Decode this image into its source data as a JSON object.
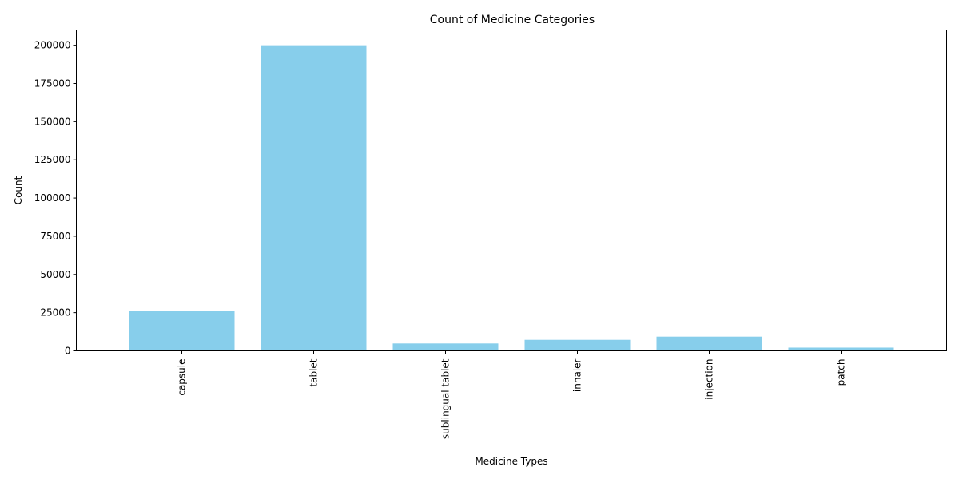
{
  "chart_data": {
    "type": "bar",
    "title": "Count of Medicine Categories",
    "xlabel": "Medicine Types",
    "ylabel": "Count",
    "categories": [
      "capsule",
      "tablet",
      "sublingual tablet",
      "inhaler",
      "injection",
      "patch"
    ],
    "values": [
      26000,
      200000,
      4800,
      7200,
      9300,
      2100
    ],
    "ylim": [
      0,
      210000
    ],
    "yticks": [
      0,
      25000,
      50000,
      75000,
      100000,
      125000,
      150000,
      175000,
      200000
    ],
    "ytick_labels": [
      "0",
      "25000",
      "50000",
      "75000",
      "100000",
      "125000",
      "150000",
      "175000",
      "200000"
    ],
    "bar_color": "#87ceeb",
    "grid": false,
    "legend": "none"
  }
}
